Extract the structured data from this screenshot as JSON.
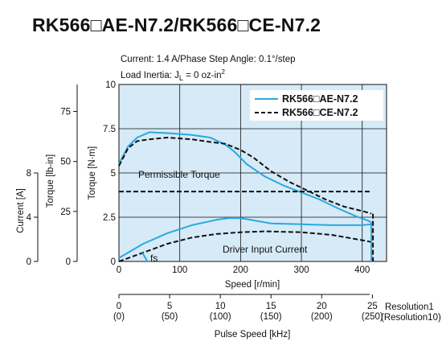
{
  "chart_data": {
    "type": "line",
    "title": "RK566□AE-N7.2/RK566□CE-N7.2",
    "conditions": [
      "Current: 1.4 A/Phase   Step Angle: 0.1°/step",
      "Load Inertia: J",
      "L",
      " = 0 oz-in",
      "2"
    ],
    "xlabel": "Speed [r/min]",
    "xlim": [
      0,
      440
    ],
    "x_ticks": [
      "0",
      "100",
      "200",
      "300",
      "400"
    ],
    "ylabel": "Torque [N·m]",
    "ylim": [
      0,
      10
    ],
    "y_ticks": [
      "0",
      "2.5",
      "5",
      "7.5",
      "10"
    ],
    "ylabel2": "Torque [lb-in]",
    "y2_ticks": [
      "0",
      "25",
      "50",
      "75"
    ],
    "ylabel3": "Current [A]",
    "y3_ticks": [
      "0",
      "4",
      "8"
    ],
    "pulse_axis": {
      "label": "Pulse Speed [kHz]",
      "ticks": [
        "0",
        "5",
        "10",
        "15",
        "20",
        "25"
      ],
      "ticks_res10": [
        "(0)",
        "(50)",
        "(100)",
        "(150)",
        "(200)",
        "(250)"
      ],
      "res1_label": "Resolution1",
      "res10_label": "(Resolution10)"
    },
    "legend": {
      "position": "top-right"
    },
    "annotations": {
      "permissible_torque": "Permissible Torque",
      "driver_input_current": "Driver Input Current",
      "fs": "fs"
    },
    "grid": true,
    "series": [
      {
        "name": "RK566□AE-N7.2",
        "style": "solid",
        "color": "#29a9e0",
        "x": [
          0,
          15,
          30,
          50,
          80,
          120,
          150,
          175,
          190,
          210,
          240,
          270,
          300,
          330,
          360,
          390,
          410,
          415
        ],
        "y": [
          5.5,
          6.5,
          7.0,
          7.3,
          7.25,
          7.15,
          7.0,
          6.6,
          6.2,
          5.5,
          4.8,
          4.3,
          3.9,
          3.5,
          3.0,
          2.55,
          2.3,
          2.2
        ]
      },
      {
        "name": "RK566□CE-N7.2",
        "style": "dashed",
        "color": "#111111",
        "x": [
          0,
          15,
          30,
          50,
          80,
          120,
          150,
          175,
          200,
          220,
          250,
          280,
          310,
          340,
          370,
          400,
          415
        ],
        "y": [
          5.4,
          6.4,
          6.8,
          6.9,
          7.0,
          6.9,
          6.75,
          6.65,
          6.3,
          5.9,
          5.1,
          4.5,
          4.0,
          3.5,
          3.1,
          2.85,
          2.7
        ]
      },
      {
        "name": "Permissible Torque",
        "style": "dashed",
        "color": "#111111",
        "x": [
          0,
          415
        ],
        "y": [
          3.95,
          3.95
        ]
      },
      {
        "name": "Driver Input Current (AE)",
        "style": "solid",
        "color": "#29a9e0",
        "x": [
          0,
          40,
          80,
          120,
          160,
          180,
          200,
          250,
          300,
          350,
          400,
          415
        ],
        "y": [
          0.2,
          1.0,
          1.6,
          2.05,
          2.35,
          2.45,
          2.45,
          2.15,
          2.1,
          2.05,
          2.05,
          2.1
        ]
      },
      {
        "name": "Driver Input Current (CE)",
        "style": "dashed",
        "color": "#111111",
        "x": [
          0,
          40,
          80,
          120,
          160,
          200,
          240,
          300,
          350,
          400,
          415
        ],
        "y": [
          0.0,
          0.5,
          1.0,
          1.35,
          1.55,
          1.65,
          1.7,
          1.65,
          1.5,
          1.2,
          1.1
        ]
      }
    ]
  }
}
